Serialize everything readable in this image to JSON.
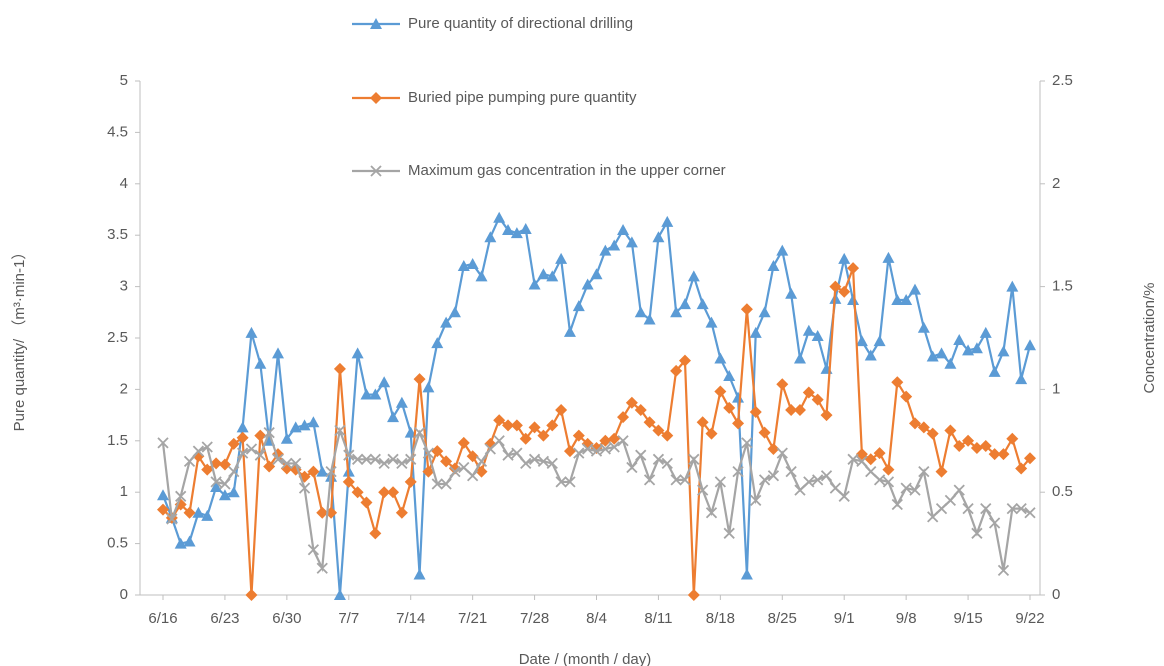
{
  "chart_data": {
    "type": "line",
    "x_label": "Date / (month / day)",
    "y_label": "Pure quantity/ （m³·min-1）",
    "y2_label": "Concentration/%",
    "categories": [
      "6/16",
      null,
      null,
      null,
      null,
      null,
      null,
      "6/23",
      null,
      null,
      null,
      null,
      null,
      null,
      "6/30",
      null,
      null,
      null,
      null,
      null,
      null,
      "7/7",
      null,
      null,
      null,
      null,
      null,
      null,
      "7/14",
      null,
      null,
      null,
      null,
      null,
      null,
      "7/21",
      null,
      null,
      null,
      null,
      null,
      null,
      "7/28",
      null,
      null,
      null,
      null,
      null,
      null,
      "8/4",
      null,
      null,
      null,
      null,
      null,
      null,
      "8/11",
      null,
      null,
      null,
      null,
      null,
      null,
      "8/18",
      null,
      null,
      null,
      null,
      null,
      null,
      "8/25",
      null,
      null,
      null,
      null,
      null,
      null,
      "9/1",
      null,
      null,
      null,
      null,
      null,
      null,
      "9/8",
      null,
      null,
      null,
      null,
      null,
      null,
      "9/15",
      null,
      null,
      null,
      null,
      null,
      null,
      "9/22"
    ],
    "ylim": [
      0,
      5
    ],
    "yticks": [
      0,
      0.5,
      1,
      1.5,
      2,
      2.5,
      3,
      3.5,
      4,
      4.5,
      5
    ],
    "y2lim": [
      0,
      2.5
    ],
    "y2ticks": [
      0,
      0.5,
      1,
      1.5,
      2,
      2.5
    ],
    "grid": false,
    "series": [
      {
        "name": "Pure quantity of directional drilling",
        "color": "#5b9bd5",
        "marker": "triangle",
        "values": [
          0.97,
          0.75,
          0.5,
          0.52,
          0.8,
          0.77,
          1.05,
          0.97,
          1.0,
          1.63,
          2.55,
          2.25,
          1.5,
          2.35,
          1.52,
          1.63,
          1.65,
          1.68,
          1.2,
          1.15,
          0,
          1.2,
          2.35,
          1.95,
          1.95,
          2.07,
          1.73,
          1.87,
          1.58,
          0.2,
          2.02,
          2.45,
          2.65,
          2.75,
          3.2,
          3.22,
          3.1,
          3.48,
          3.67,
          3.55,
          3.52,
          3.56,
          3.02,
          3.12,
          3.1,
          3.27,
          2.56,
          2.81,
          3.02,
          3.12,
          3.35,
          3.4,
          3.55,
          3.43,
          2.75,
          2.68,
          3.48,
          3.63,
          2.75,
          2.83,
          3.1,
          2.83,
          2.65,
          2.3,
          2.13,
          1.92,
          0.2,
          2.55,
          2.75,
          3.2,
          3.35,
          2.93,
          2.3,
          2.57,
          2.52,
          2.2,
          2.88,
          3.27,
          2.87,
          2.47,
          2.33,
          2.47,
          3.28,
          2.87,
          2.87,
          2.97,
          2.6,
          2.32,
          2.35,
          2.25,
          2.48,
          2.38,
          2.4,
          2.55,
          2.17,
          2.37,
          3.0,
          2.1,
          2.43
        ]
      },
      {
        "name": "Buried pipe pumping pure quantity",
        "color": "#ed7d31",
        "marker": "diamond",
        "values": [
          0.83,
          0.75,
          0.88,
          0.8,
          1.35,
          1.22,
          1.28,
          1.27,
          1.47,
          1.53,
          0,
          1.55,
          1.25,
          1.37,
          1.23,
          1.22,
          1.15,
          1.2,
          0.8,
          0.8,
          2.2,
          1.1,
          1.0,
          0.9,
          0.6,
          1.0,
          1.0,
          0.8,
          1.1,
          2.1,
          1.2,
          1.4,
          1.3,
          1.23,
          1.48,
          1.35,
          1.2,
          1.47,
          1.7,
          1.65,
          1.65,
          1.52,
          1.63,
          1.55,
          1.65,
          1.8,
          1.4,
          1.55,
          1.47,
          1.43,
          1.5,
          1.52,
          1.73,
          1.87,
          1.8,
          1.68,
          1.6,
          1.55,
          2.18,
          2.28,
          0,
          1.68,
          1.57,
          1.98,
          1.82,
          1.67,
          2.78,
          1.78,
          1.58,
          1.42,
          2.05,
          1.8,
          1.8,
          1.97,
          1.9,
          1.75,
          3.0,
          2.95,
          3.18,
          1.37,
          1.32,
          1.38,
          1.22,
          2.07,
          1.93,
          1.67,
          1.63,
          1.57,
          1.2,
          1.6,
          1.45,
          1.5,
          1.43,
          1.45,
          1.37,
          1.37,
          1.52,
          1.23,
          1.33
        ]
      },
      {
        "name": "Maximum gas concentration in the upper corner",
        "color": "#a5a5a5",
        "marker": "x",
        "axis": "y2",
        "values": [
          0.74,
          0.37,
          0.48,
          0.65,
          0.7,
          0.72,
          0.55,
          0.54,
          0.6,
          0.69,
          0.71,
          0.68,
          0.79,
          0.66,
          0.64,
          0.64,
          0.52,
          0.22,
          0.13,
          0.6,
          0.8,
          0.68,
          0.66,
          0.66,
          0.66,
          0.64,
          0.66,
          0.64,
          0.66,
          0.79,
          0.69,
          0.54,
          0.54,
          0.6,
          0.62,
          0.58,
          0.65,
          0.71,
          0.75,
          0.68,
          0.69,
          0.64,
          0.66,
          0.65,
          0.64,
          0.55,
          0.55,
          0.69,
          0.71,
          0.7,
          0.71,
          0.72,
          0.75,
          0.62,
          0.68,
          0.56,
          0.66,
          0.64,
          0.56,
          0.56,
          0.66,
          0.51,
          0.4,
          0.55,
          0.3,
          0.6,
          0.74,
          0.46,
          0.56,
          0.58,
          0.69,
          0.6,
          0.51,
          0.55,
          0.56,
          0.58,
          0.52,
          0.48,
          0.66,
          0.65,
          0.6,
          0.56,
          0.55,
          0.44,
          0.52,
          0.51,
          0.6,
          0.38,
          0.42,
          0.46,
          0.51,
          0.42,
          0.3,
          0.42,
          0.35,
          0.12,
          0.42,
          0.42,
          0.4
        ]
      }
    ]
  }
}
